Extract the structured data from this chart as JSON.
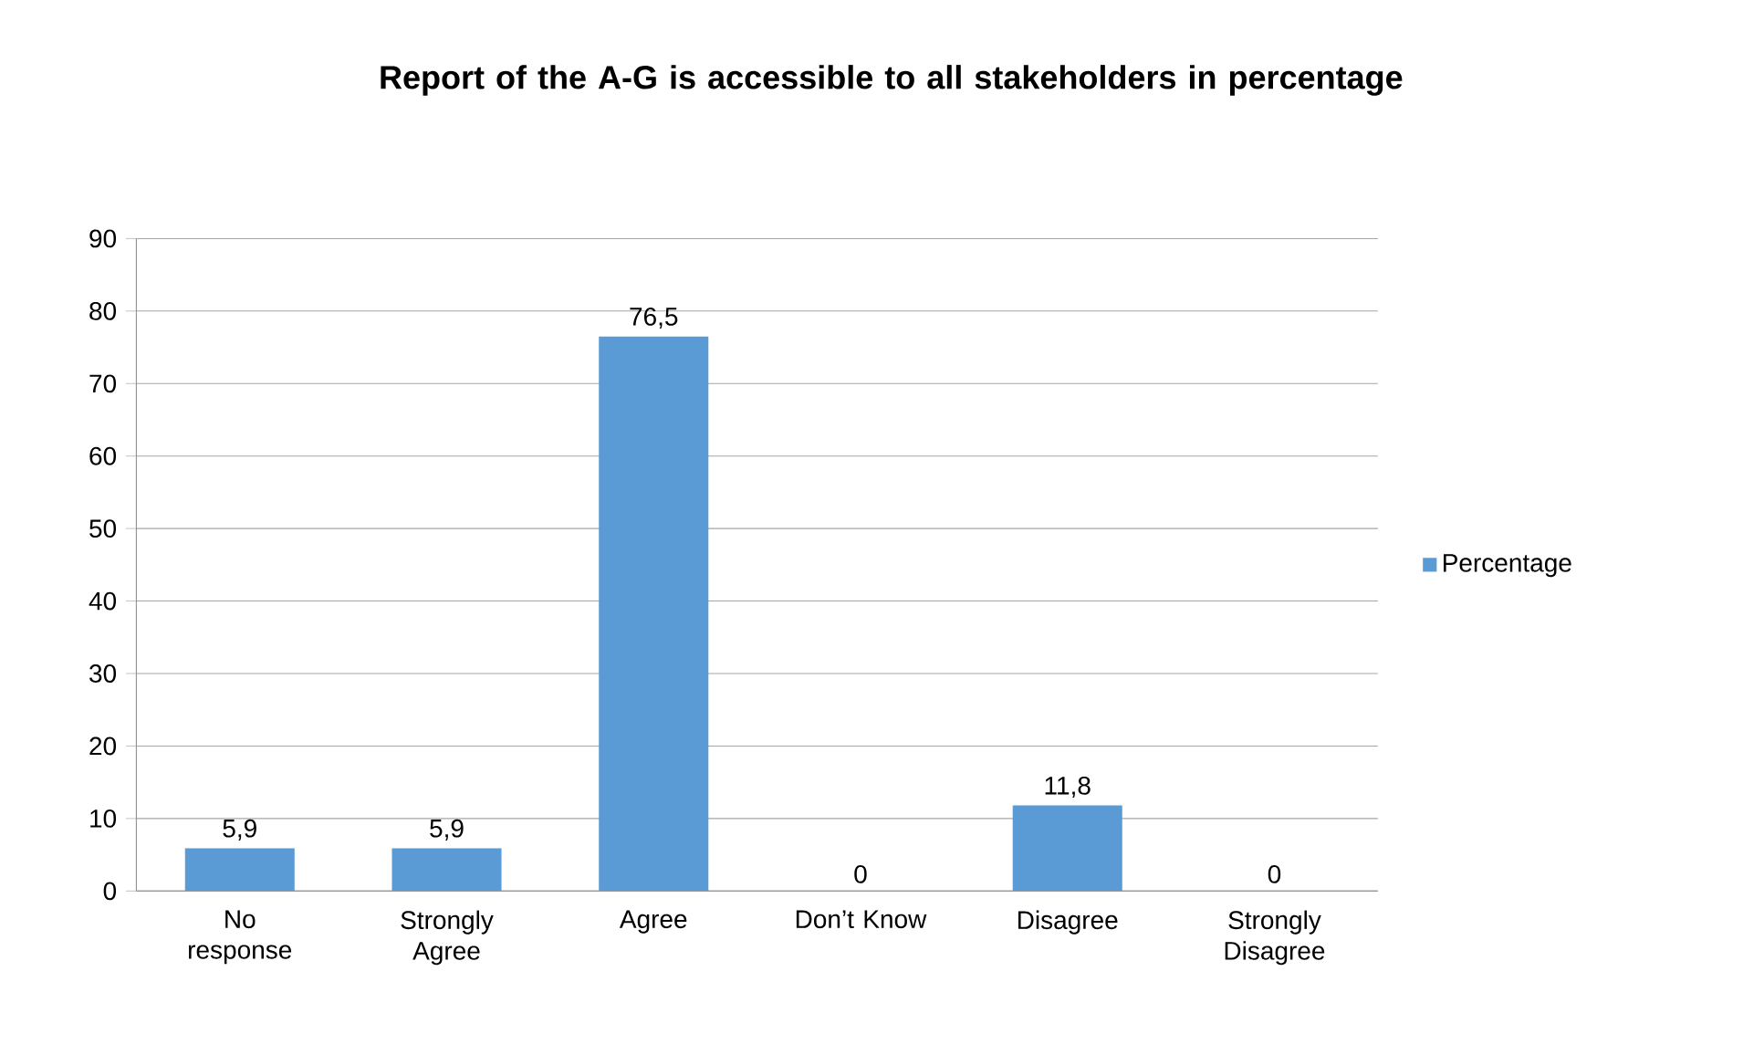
{
  "chart_data": {
    "type": "bar",
    "title": "Report of the A-G is accessible to all stakeholders  in percentage",
    "categories": [
      "No response",
      "Strongly Agree",
      "Agree",
      "Don’t Know",
      "Disagree",
      "Strongly Disagree"
    ],
    "series": [
      {
        "name": "Percentage",
        "color": "#5b9bd5",
        "values": [
          5.9,
          5.9,
          76.5,
          0,
          11.8,
          0
        ],
        "value_labels": [
          "5,9",
          "5,9",
          "76,5",
          "0",
          "11,8",
          "0"
        ]
      }
    ],
    "ylim": [
      0,
      90
    ],
    "yticks": [
      0,
      10,
      20,
      30,
      40,
      50,
      60,
      70,
      80,
      90
    ],
    "grid": "y",
    "legend": "right"
  }
}
